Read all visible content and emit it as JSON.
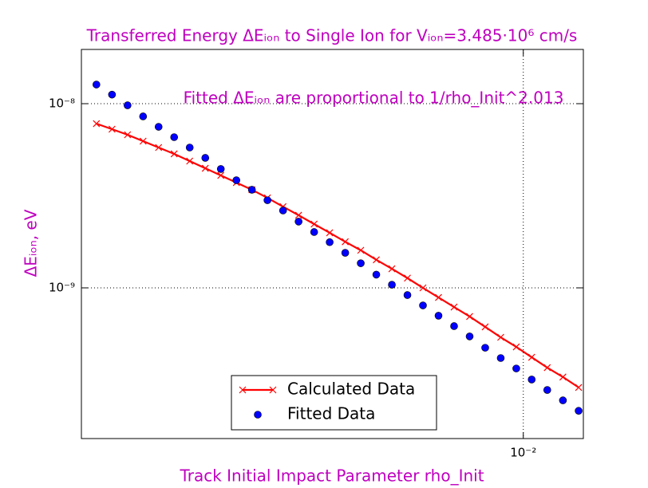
{
  "chart_data": {
    "type": "line",
    "title": "Transferred Energy ΔEᵢₒₙ to Single Ion for Vᵢₒₙ=3.485·10⁶ cm/s",
    "annotation": "Fitted ΔEᵢₒₙ are proportional to 1/rho_Init^2.013",
    "x_label": "Track Initial Impact Parameter rho_Init",
    "y_label": "ΔEᵢₒₙ, eV",
    "x": [
      0.00258,
      0.002711,
      0.002848,
      0.002992,
      0.003143,
      0.003302,
      0.003469,
      0.003645,
      0.003829,
      0.004023,
      0.004226,
      0.00444,
      0.004665,
      0.004901,
      0.005149,
      0.005409,
      0.005683,
      0.00597,
      0.006272,
      0.00659,
      0.006923,
      0.007273,
      0.007641,
      0.008028,
      0.008434,
      0.008861,
      0.009309,
      0.00978,
      0.01027,
      0.01079,
      0.01134,
      0.01192
    ],
    "series": [
      {
        "name": "Calculated Data",
        "color": "#ff0000",
        "style": "line-x",
        "values": [
          7.79e-09,
          7.27e-09,
          6.78e-09,
          6.26e-09,
          5.78e-09,
          5.34e-09,
          4.88e-09,
          4.46e-09,
          4.08e-09,
          3.73e-09,
          3.41e-09,
          3.08e-09,
          2.76e-09,
          2.48e-09,
          2.22e-09,
          1.99e-09,
          1.78e-09,
          1.6e-09,
          1.42e-09,
          1.27e-09,
          1.13e-09,
          1e-09,
          8.87e-10,
          7.87e-10,
          6.99e-10,
          6.14e-10,
          5.39e-10,
          4.78e-10,
          4.2e-10,
          3.69e-10,
          3.28e-10,
          2.88e-10
        ]
      },
      {
        "name": "Fitted Data",
        "color": "#0000ff",
        "style": "dots",
        "values": [
          1.27e-08,
          1.12e-08,
          9.8e-09,
          8.53e-09,
          7.49e-09,
          6.58e-09,
          5.78e-09,
          5.08e-09,
          4.42e-09,
          3.84e-09,
          3.41e-09,
          2.99e-09,
          2.63e-09,
          2.29e-09,
          2.01e-09,
          1.77e-09,
          1.55e-09,
          1.36e-09,
          1.18e-09,
          1.04e-09,
          9.14e-10,
          8.03e-10,
          7.06e-10,
          6.2e-10,
          5.45e-10,
          4.73e-10,
          4.16e-10,
          3.65e-10,
          3.18e-10,
          2.79e-10,
          2.45e-10,
          2.15e-10
        ]
      }
    ],
    "xlim": [
      0.00246,
      0.0121
    ],
    "ylim": [
      1.52e-10,
      1.97e-08
    ],
    "xticks": [
      {
        "value": 0.01,
        "label": "10⁻²"
      }
    ],
    "yticks": [
      {
        "value": 1e-09,
        "label": "10⁻⁹"
      },
      {
        "value": 1e-08,
        "label": "10⁻⁸"
      }
    ],
    "xscale": "log",
    "yscale": "log",
    "grid": true,
    "legend": "lower center"
  }
}
